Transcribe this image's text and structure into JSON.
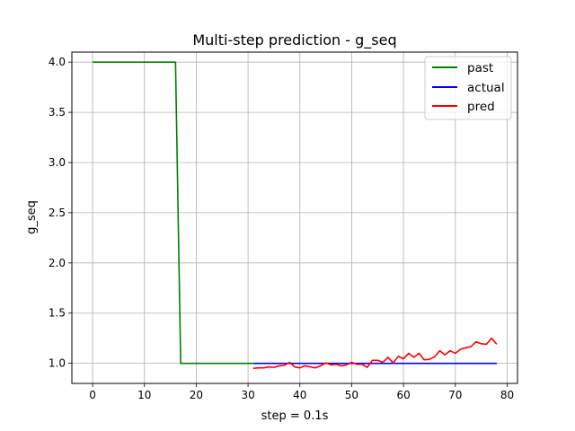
{
  "chart_data": {
    "type": "line",
    "title": "Multi-step prediction - g_seq",
    "xlabel": "step = 0.1s",
    "ylabel": "g_seq",
    "xlim": [
      -4,
      82
    ],
    "ylim": [
      0.8,
      4.1
    ],
    "xticks": [
      0,
      10,
      20,
      30,
      40,
      50,
      60,
      70,
      80
    ],
    "yticks": [
      1.0,
      1.5,
      2.0,
      2.5,
      3.0,
      3.5,
      4.0
    ],
    "ytick_labels": [
      "1.0",
      "1.5",
      "2.0",
      "2.5",
      "3.0",
      "3.5",
      "4.0"
    ],
    "grid": true,
    "legend_position": "top-right",
    "series": [
      {
        "name": "past",
        "color": "#008000",
        "x": [
          0,
          1,
          2,
          3,
          4,
          5,
          6,
          7,
          8,
          9,
          10,
          11,
          12,
          13,
          14,
          15,
          16,
          17,
          18,
          19,
          20,
          21,
          22,
          23,
          24,
          25,
          26,
          27,
          28,
          29,
          30,
          31
        ],
        "y": [
          4,
          4,
          4,
          4,
          4,
          4,
          4,
          4,
          4,
          4,
          4,
          4,
          4,
          4,
          4,
          4,
          4,
          1,
          1,
          1,
          1,
          1,
          1,
          1,
          1,
          1,
          1,
          1,
          1,
          1,
          1,
          1
        ]
      },
      {
        "name": "actual",
        "color": "#0000ff",
        "x": [
          31,
          78
        ],
        "y": [
          1.0,
          1.0
        ]
      },
      {
        "name": "pred",
        "color": "#ff0000",
        "x": [
          31,
          32,
          33,
          34,
          35,
          36,
          37,
          38,
          39,
          40,
          41,
          42,
          43,
          44,
          45,
          46,
          47,
          48,
          49,
          50,
          51,
          52,
          53,
          54,
          55,
          56,
          57,
          58,
          59,
          60,
          61,
          62,
          63,
          64,
          65,
          66,
          67,
          68,
          69,
          70,
          71,
          72,
          73,
          74,
          75,
          76,
          77,
          78
        ],
        "y": [
          0.95,
          0.955,
          0.955,
          0.965,
          0.96,
          0.975,
          0.98,
          1.01,
          0.965,
          0.955,
          0.975,
          0.965,
          0.955,
          0.975,
          1.005,
          0.985,
          0.99,
          0.975,
          0.985,
          1.01,
          0.99,
          0.99,
          0.96,
          1.03,
          1.03,
          1.01,
          1.06,
          1.005,
          1.07,
          1.045,
          1.1,
          1.06,
          1.1,
          1.035,
          1.04,
          1.065,
          1.125,
          1.085,
          1.125,
          1.1,
          1.14,
          1.155,
          1.165,
          1.215,
          1.195,
          1.19,
          1.25,
          1.19
        ]
      }
    ]
  }
}
